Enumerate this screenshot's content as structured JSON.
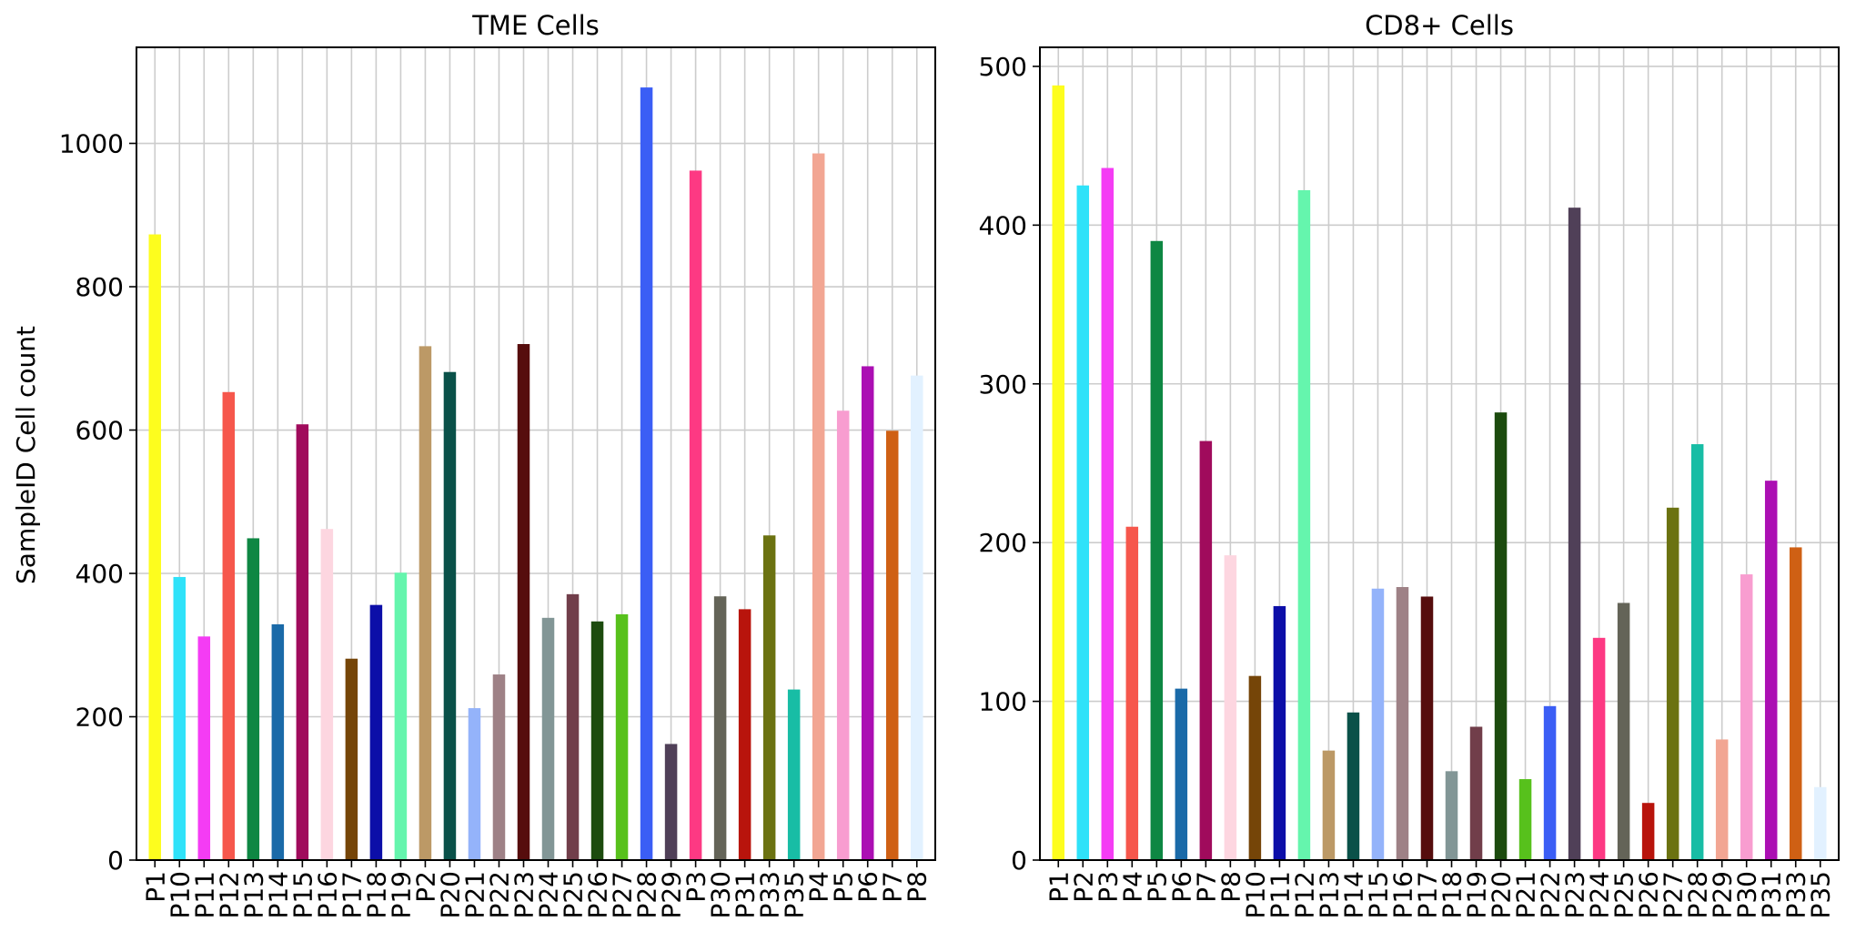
{
  "figure": {
    "ylabel": "SampleID Cell count"
  },
  "chart_data": [
    {
      "type": "bar",
      "title": "TME Cells",
      "ylabel": "SampleID Cell count",
      "ylim": [
        0,
        1134
      ],
      "yticks": [
        0,
        200,
        400,
        600,
        800,
        1000
      ],
      "grid": true,
      "legend": "none",
      "categories": [
        "P1",
        "P10",
        "P11",
        "P12",
        "P13",
        "P14",
        "P15",
        "P16",
        "P17",
        "P18",
        "P19",
        "P2",
        "P20",
        "P21",
        "P22",
        "P23",
        "P24",
        "P25",
        "P26",
        "P27",
        "P28",
        "P29",
        "P3",
        "P30",
        "P31",
        "P33",
        "P35",
        "P4",
        "P5",
        "P6",
        "P7",
        "P8"
      ],
      "values": [
        873,
        395,
        312,
        653,
        449,
        329,
        608,
        462,
        281,
        356,
        401,
        717,
        681,
        212,
        259,
        720,
        338,
        371,
        333,
        343,
        1078,
        162,
        962,
        368,
        350,
        453,
        238,
        986,
        627,
        689,
        599,
        676
      ],
      "colors": [
        "#fdfd1e",
        "#2fe2f9",
        "#f43cf4",
        "#f6574c",
        "#0e8743",
        "#1a6aa8",
        "#a00b5c",
        "#fdd6e0",
        "#754508",
        "#0c0ea8",
        "#65f5ad",
        "#bc9966",
        "#0a5149",
        "#94b3fa",
        "#9e8186",
        "#560d0d",
        "#829696",
        "#713e4a",
        "#1c4b0e",
        "#57c11c",
        "#3b5ef5",
        "#504058",
        "#fd3983",
        "#646458",
        "#b8140c",
        "#6b7211",
        "#18bda5",
        "#f2a693",
        "#f89dd0",
        "#ab0fb3",
        "#cf6014",
        "#e2f1ff"
      ]
    },
    {
      "type": "bar",
      "title": "CD8+ Cells",
      "ylim": [
        0,
        512
      ],
      "yticks": [
        0,
        100,
        200,
        300,
        400,
        500
      ],
      "grid": true,
      "legend": "none",
      "categories": [
        "P1",
        "P2",
        "P3",
        "P4",
        "P5",
        "P6",
        "P7",
        "P8",
        "P10",
        "P11",
        "P12",
        "P13",
        "P14",
        "P15",
        "P16",
        "P17",
        "P18",
        "P19",
        "P20",
        "P21",
        "P22",
        "P23",
        "P24",
        "P25",
        "P26",
        "P27",
        "P28",
        "P29",
        "P30",
        "P31",
        "P33",
        "P35"
      ],
      "values": [
        488,
        425,
        436,
        210,
        390,
        108,
        264,
        192,
        116,
        160,
        422,
        69,
        93,
        171,
        172,
        166,
        56,
        84,
        282,
        51,
        97,
        411,
        140,
        162,
        36,
        222,
        262,
        76,
        180,
        239,
        197,
        46
      ],
      "colors": [
        "#fdfd1e",
        "#2fe2f9",
        "#f43cf4",
        "#f6574c",
        "#0e8743",
        "#1a6aa8",
        "#a00b5c",
        "#fdd6e0",
        "#754508",
        "#0c0ea8",
        "#65f5ad",
        "#bc9966",
        "#0a5149",
        "#94b3fa",
        "#9e8186",
        "#560d0d",
        "#829696",
        "#713e4a",
        "#1c4b0e",
        "#57c11c",
        "#3b5ef5",
        "#504058",
        "#fd3983",
        "#646458",
        "#b8140c",
        "#6b7211",
        "#18bda5",
        "#f2a693",
        "#f89dd0",
        "#ab0fb3",
        "#cf6014",
        "#e2f1ff"
      ]
    }
  ]
}
